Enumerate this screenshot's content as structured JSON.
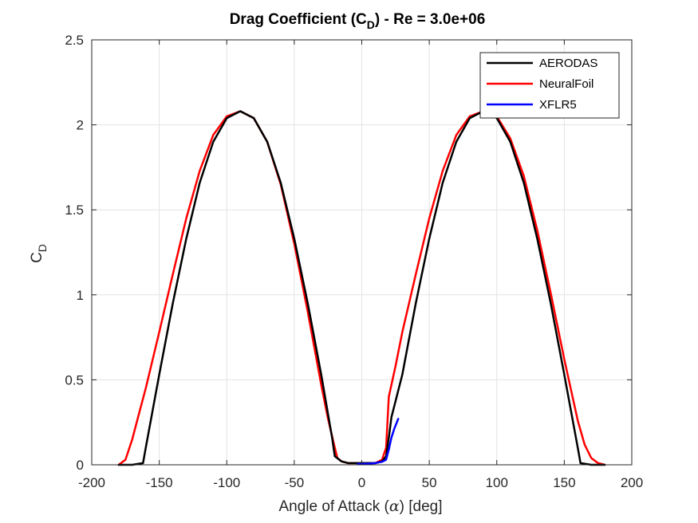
{
  "chart_data": {
    "type": "line",
    "title_main": "Drag Coefficient (C",
    "title_sub": "D",
    "title_tail": ") - Re = 3.0e+06",
    "xlabel_main": "Angle of Attack (",
    "xlabel_symbol": "α",
    "xlabel_tail": ") [deg]",
    "ylabel_main": "C",
    "ylabel_sub": "D",
    "xlim": [
      -200,
      200
    ],
    "ylim": [
      0,
      2.5
    ],
    "xticks": [
      -200,
      -150,
      -100,
      -50,
      0,
      50,
      100,
      150,
      200
    ],
    "yticks": [
      0,
      0.5,
      1,
      1.5,
      2,
      2.5
    ],
    "xtick_labels": [
      "-200",
      "-150",
      "-100",
      "-50",
      "0",
      "50",
      "100",
      "150",
      "200"
    ],
    "ytick_labels": [
      "0",
      "0.5",
      "1",
      "1.5",
      "2",
      "2.5"
    ],
    "grid": true,
    "legend_position": "top-right",
    "series": [
      {
        "name": "AERODAS",
        "color": "#000000",
        "x": [
          -180,
          -170,
          -162,
          -160,
          -150,
          -140,
          -130,
          -120,
          -110,
          -100,
          -90,
          -80,
          -70,
          -60,
          -50,
          -40,
          -30,
          -22,
          -20,
          -15,
          -10,
          -5,
          0,
          5,
          10,
          15,
          18,
          20,
          22,
          30,
          40,
          50,
          60,
          70,
          80,
          90,
          100,
          110,
          120,
          130,
          140,
          150,
          160,
          162,
          170,
          180
        ],
        "y": [
          0,
          0,
          0.01,
          0.1,
          0.53,
          0.95,
          1.33,
          1.66,
          1.9,
          2.04,
          2.08,
          2.04,
          1.9,
          1.66,
          1.33,
          0.95,
          0.53,
          0.16,
          0.05,
          0.02,
          0.01,
          0.01,
          0.01,
          0.01,
          0.01,
          0.02,
          0.05,
          0.16,
          0.28,
          0.53,
          0.95,
          1.33,
          1.66,
          1.9,
          2.04,
          2.08,
          2.04,
          1.9,
          1.66,
          1.33,
          0.95,
          0.53,
          0.1,
          0.01,
          0,
          0
        ]
      },
      {
        "name": "NeuralFoil",
        "color": "#ff0000",
        "x": [
          -180,
          -175,
          -170,
          -165,
          -160,
          -150,
          -140,
          -130,
          -120,
          -110,
          -100,
          -90,
          -80,
          -70,
          -60,
          -50,
          -40,
          -30,
          -25,
          -20,
          -18,
          -15,
          -10,
          -5,
          0,
          5,
          10,
          15,
          18,
          20,
          25,
          30,
          40,
          50,
          60,
          70,
          80,
          90,
          100,
          110,
          120,
          130,
          140,
          150,
          160,
          165,
          170,
          175,
          180
        ],
        "y": [
          0,
          0.03,
          0.15,
          0.3,
          0.45,
          0.78,
          1.12,
          1.45,
          1.73,
          1.94,
          2.05,
          2.08,
          2.04,
          1.9,
          1.65,
          1.3,
          0.9,
          0.47,
          0.27,
          0.1,
          0.04,
          0.02,
          0.01,
          0.01,
          0.01,
          0.01,
          0.01,
          0.03,
          0.1,
          0.4,
          0.58,
          0.78,
          1.12,
          1.45,
          1.73,
          1.94,
          2.05,
          2.08,
          2.05,
          1.92,
          1.7,
          1.38,
          1.01,
          0.62,
          0.26,
          0.12,
          0.04,
          0.01,
          0
        ]
      },
      {
        "name": "XFLR5",
        "color": "#0000ff",
        "x": [
          -3,
          0,
          5,
          10,
          15,
          18,
          20,
          22,
          24,
          26,
          27
        ],
        "y": [
          0.005,
          0.006,
          0.007,
          0.01,
          0.018,
          0.03,
          0.09,
          0.16,
          0.21,
          0.25,
          0.27
        ]
      }
    ]
  }
}
